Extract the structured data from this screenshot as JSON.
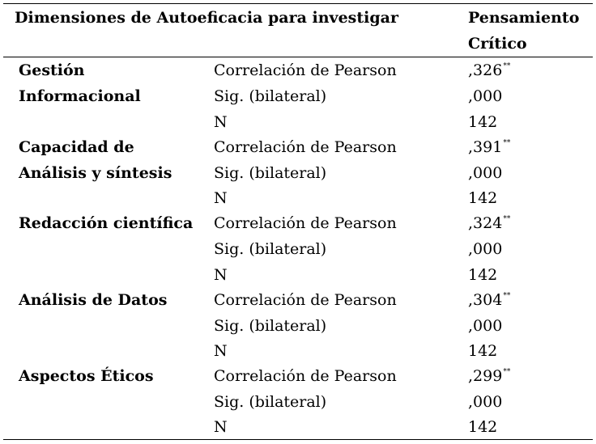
{
  "header": {
    "left": "Dimensiones de Autoeficacia para investigar",
    "right_line1": "Pensamiento",
    "right_line2": "Crítico"
  },
  "rows": [
    {
      "dimension": "Gestión Informacional",
      "stats": [
        {
          "label": "Correlación de Pearson",
          "value": ",326",
          "mark": "**"
        },
        {
          "label": "Sig. (bilateral)",
          "value": ",000",
          "mark": ""
        },
        {
          "label": "N",
          "value": "142",
          "mark": ""
        }
      ]
    },
    {
      "dimension": "Capacidad de Análisis y síntesis",
      "stats": [
        {
          "label": "Correlación de Pearson",
          "value": ",391",
          "mark": "**"
        },
        {
          "label": "Sig. (bilateral)",
          "value": ",000",
          "mark": ""
        },
        {
          "label": "N",
          "value": "142",
          "mark": ""
        }
      ]
    },
    {
      "dimension": "Redacción científica",
      "stats": [
        {
          "label": "Correlación de Pearson",
          "value": ",324",
          "mark": "**"
        },
        {
          "label": "Sig. (bilateral)",
          "value": ",000",
          "mark": ""
        },
        {
          "label": "N",
          "value": "142",
          "mark": ""
        }
      ]
    },
    {
      "dimension": "Análisis de Datos",
      "stats": [
        {
          "label": "Correlación de Pearson",
          "value": ",304",
          "mark": "**"
        },
        {
          "label": "Sig. (bilateral)",
          "value": ",000",
          "mark": ""
        },
        {
          "label": "N",
          "value": "142",
          "mark": ""
        }
      ]
    },
    {
      "dimension": "Aspectos Éticos",
      "stats": [
        {
          "label": "Correlación de Pearson",
          "value": ",299",
          "mark": "**"
        },
        {
          "label": "Sig. (bilateral)",
          "value": ",000",
          "mark": ""
        },
        {
          "label": "N",
          "value": "142",
          "mark": ""
        }
      ]
    }
  ]
}
